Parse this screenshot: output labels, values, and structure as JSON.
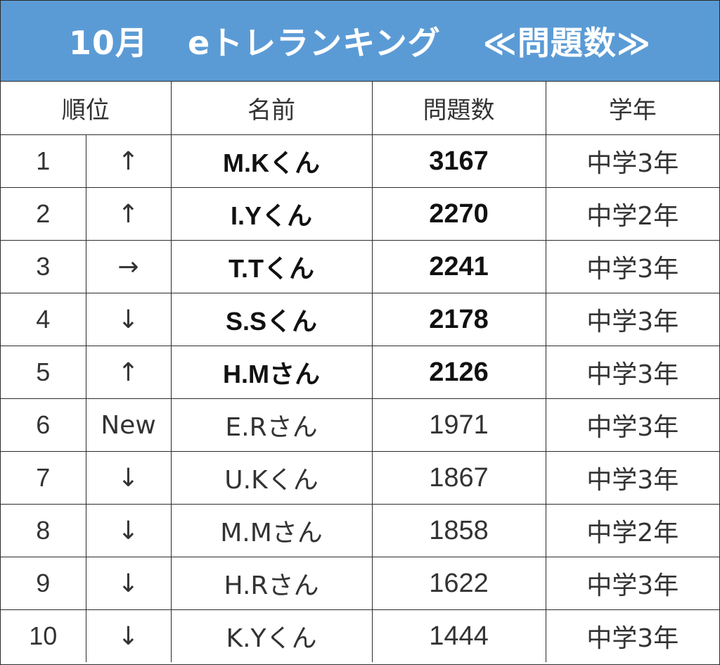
{
  "banner": {
    "month": "10月",
    "title": "eトレランキング",
    "metric": "≪問題数≫"
  },
  "colors": {
    "banner_bg": "#5b9bd5",
    "banner_text": "#ffffff",
    "grid": "#2b2b2b"
  },
  "table": {
    "headers": {
      "rank": "順位",
      "name": "名前",
      "count": "問題数",
      "grade": "学年"
    },
    "rows": [
      {
        "rank": "1",
        "change": "↑",
        "name": "M.Kくん",
        "count": "3167",
        "grade": "中学3年",
        "highlight": true
      },
      {
        "rank": "2",
        "change": "↑",
        "name": "I.Yくん",
        "count": "2270",
        "grade": "中学2年",
        "highlight": true
      },
      {
        "rank": "3",
        "change": "→",
        "name": "T.Tくん",
        "count": "2241",
        "grade": "中学3年",
        "highlight": true
      },
      {
        "rank": "4",
        "change": "↓",
        "name": "S.Sくん",
        "count": "2178",
        "grade": "中学3年",
        "highlight": true
      },
      {
        "rank": "5",
        "change": "↑",
        "name": "H.Mさん",
        "count": "2126",
        "grade": "中学3年",
        "highlight": true
      },
      {
        "rank": "6",
        "change": "New",
        "name": "E.Rさん",
        "count": "1971",
        "grade": "中学3年",
        "highlight": false
      },
      {
        "rank": "7",
        "change": "↓",
        "name": "U.Kくん",
        "count": "1867",
        "grade": "中学3年",
        "highlight": false
      },
      {
        "rank": "8",
        "change": "↓",
        "name": "M.Mさん",
        "count": "1858",
        "grade": "中学2年",
        "highlight": false
      },
      {
        "rank": "9",
        "change": "↓",
        "name": "H.Rさん",
        "count": "1622",
        "grade": "中学3年",
        "highlight": false
      },
      {
        "rank": "10",
        "change": "↓",
        "name": "K.Yくん",
        "count": "1444",
        "grade": "中学3年",
        "highlight": false
      }
    ]
  }
}
